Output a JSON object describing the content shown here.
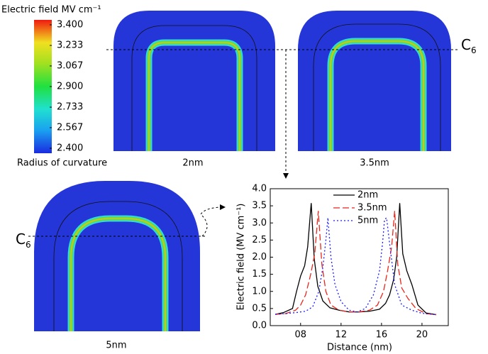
{
  "colorbar": {
    "title": "Electric field MV cm⁻¹",
    "clim": [
      2.4,
      3.4
    ],
    "ticks": [
      {
        "value": 3.4,
        "label": "3.400"
      },
      {
        "value": 3.233,
        "label": "3.233"
      },
      {
        "value": 3.067,
        "label": "3.067"
      },
      {
        "value": 2.9,
        "label": "2.900"
      },
      {
        "value": 2.733,
        "label": "2.733"
      },
      {
        "value": 2.567,
        "label": "2.567"
      },
      {
        "value": 2.4,
        "label": "2.400"
      }
    ]
  },
  "radius_label": "Radius of curvature",
  "panels": [
    {
      "label": "2nm"
    },
    {
      "label": "3.5nm"
    },
    {
      "label": "5nm"
    }
  ],
  "cut_line": {
    "letter": "C",
    "subscript": "6"
  },
  "chart_data": {
    "type": "line",
    "x_label": "Distance (nm)",
    "y_label": "Electric field (MV cm⁻¹)",
    "xlim": [
      5,
      22.6
    ],
    "xticks": [
      {
        "value": 8,
        "label": "08"
      },
      12,
      16,
      20
    ],
    "ylim": [
      0,
      4
    ],
    "yticks": [
      {
        "value": 0,
        "label": "0.0"
      },
      0.5,
      {
        "value": 1,
        "label": "1.0"
      },
      1.5,
      {
        "value": 2,
        "label": "2.0"
      },
      2.5,
      {
        "value": 3,
        "label": "3.0"
      },
      3.5,
      {
        "value": 4,
        "label": "4.0"
      }
    ],
    "legend": "top-right",
    "series": [
      {
        "name": "2nm",
        "color": "#000000",
        "style": "solid",
        "x": [
          5.5,
          6.3,
          7.2,
          7.6,
          8.0,
          8.4,
          8.7,
          9.05,
          9.35,
          9.7,
          10.2,
          10.9,
          11.8,
          12.8,
          13.8,
          14.8,
          15.8,
          16.4,
          16.8,
          17.2,
          17.5,
          17.8,
          18.1,
          18.5,
          19.0,
          19.6,
          20.4,
          21.4
        ],
        "values": [
          0.33,
          0.38,
          0.5,
          1.0,
          1.45,
          1.75,
          2.3,
          3.58,
          1.95,
          1.15,
          0.72,
          0.52,
          0.45,
          0.4,
          0.4,
          0.42,
          0.48,
          0.65,
          0.9,
          1.35,
          2.0,
          3.58,
          2.1,
          1.6,
          1.2,
          0.6,
          0.37,
          0.32
        ]
      },
      {
        "name": "3.5nm",
        "color": "#e8261c",
        "style": "dashed",
        "x": [
          5.5,
          6.5,
          7.5,
          8.0,
          8.5,
          9.0,
          9.4,
          9.75,
          10.1,
          10.5,
          11.0,
          11.8,
          12.8,
          13.8,
          14.8,
          15.6,
          16.2,
          16.6,
          17.0,
          17.3,
          17.6,
          18.0,
          18.6,
          19.4,
          20.4,
          21.4
        ],
        "values": [
          0.33,
          0.35,
          0.45,
          0.6,
          0.9,
          1.5,
          2.1,
          3.35,
          1.8,
          1.0,
          0.6,
          0.45,
          0.4,
          0.4,
          0.45,
          0.6,
          1.0,
          1.6,
          2.3,
          3.35,
          1.8,
          1.1,
          0.8,
          0.5,
          0.35,
          0.32
        ]
      },
      {
        "name": "5nm",
        "color": "#1a1aff",
        "style": "dotted",
        "x": [
          5.5,
          6.5,
          7.5,
          8.5,
          9.2,
          9.8,
          10.2,
          10.5,
          10.7,
          11.0,
          11.4,
          12.0,
          12.8,
          13.6,
          14.4,
          15.2,
          15.8,
          16.1,
          16.3,
          16.5,
          16.8,
          17.3,
          18.0,
          19.0,
          20.0,
          21.4
        ],
        "values": [
          0.33,
          0.35,
          0.38,
          0.42,
          0.55,
          1.0,
          1.7,
          2.5,
          3.15,
          2.0,
          1.2,
          0.7,
          0.45,
          0.4,
          0.5,
          0.9,
          1.6,
          2.4,
          3.1,
          3.15,
          2.4,
          1.2,
          0.6,
          0.45,
          0.36,
          0.32
        ]
      }
    ]
  }
}
